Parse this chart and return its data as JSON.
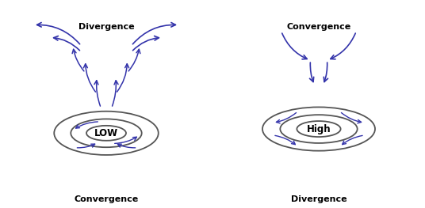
{
  "arrow_color": "#3333aa",
  "ellipse_color": "#555555",
  "text_color": "#000000",
  "bg_color": "#ffffff",
  "low_label": "LOW",
  "high_label": "High",
  "low_top_label": "Divergence",
  "low_bottom_label": "Convergence",
  "high_top_label": "Convergence",
  "high_bottom_label": "Divergence"
}
